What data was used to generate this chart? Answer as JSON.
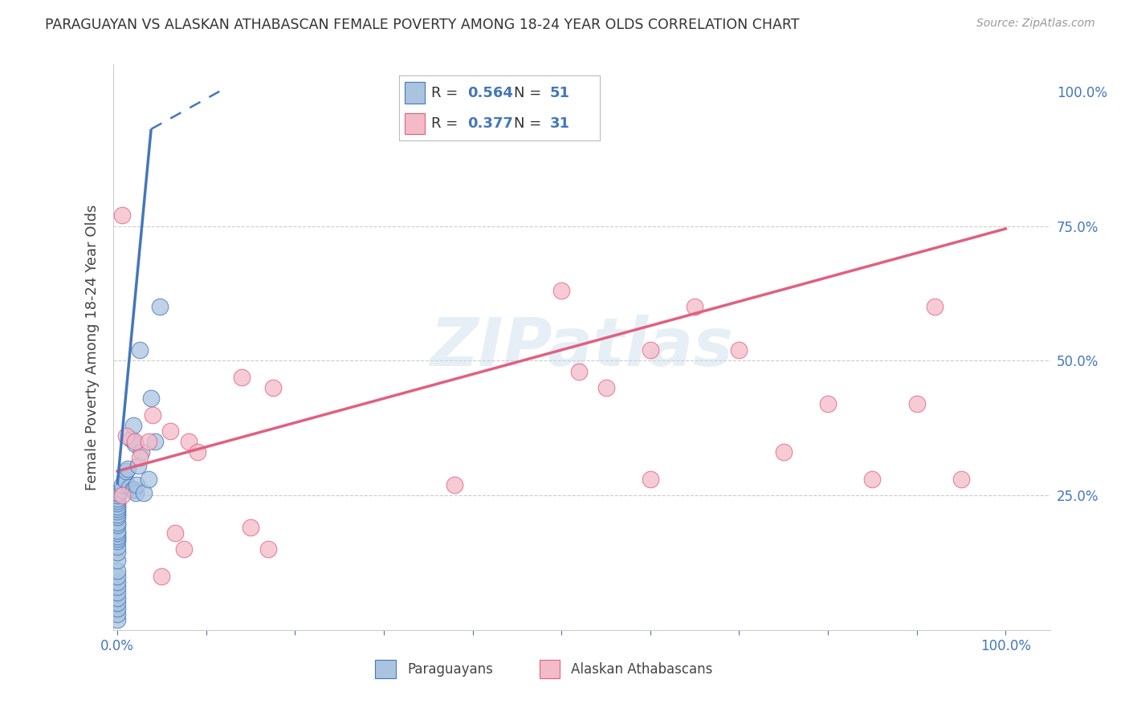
{
  "title": "PARAGUAYAN VS ALASKAN ATHABASCAN FEMALE POVERTY AMONG 18-24 YEAR OLDS CORRELATION CHART",
  "source": "Source: ZipAtlas.com",
  "ylabel": "Female Poverty Among 18-24 Year Olds",
  "blue_R": 0.564,
  "blue_N": 51,
  "pink_R": 0.377,
  "pink_N": 31,
  "blue_label": "Paraguayans",
  "pink_label": "Alaskan Athabascans",
  "blue_color": "#aac4e0",
  "pink_color": "#f5bac8",
  "blue_line_color": "#4477bb",
  "pink_line_color": "#e06080",
  "blue_text_color": "#4477bb",
  "watermark_text": "ZIPatlas",
  "blue_points_x": [
    0.0,
    0.0,
    0.0,
    0.0,
    0.0,
    0.0,
    0.0,
    0.0,
    0.0,
    0.0,
    0.0,
    0.0,
    0.0,
    0.0,
    0.0,
    0.0,
    0.0,
    0.0,
    0.0,
    0.0,
    0.0,
    0.0,
    0.0,
    0.0,
    0.0,
    0.0,
    0.0,
    0.0,
    0.0,
    0.0,
    0.005,
    0.005,
    0.008,
    0.01,
    0.012,
    0.013,
    0.015,
    0.017,
    0.018,
    0.019,
    0.02,
    0.021,
    0.022,
    0.023,
    0.025,
    0.027,
    0.03,
    0.035,
    0.038,
    0.042,
    0.048
  ],
  "blue_points_y": [
    0.02,
    0.03,
    0.04,
    0.05,
    0.06,
    0.07,
    0.08,
    0.09,
    0.1,
    0.11,
    0.13,
    0.145,
    0.155,
    0.165,
    0.17,
    0.175,
    0.18,
    0.185,
    0.195,
    0.2,
    0.21,
    0.215,
    0.22,
    0.225,
    0.23,
    0.235,
    0.24,
    0.245,
    0.25,
    0.255,
    0.26,
    0.27,
    0.28,
    0.295,
    0.3,
    0.265,
    0.355,
    0.26,
    0.38,
    0.26,
    0.345,
    0.255,
    0.27,
    0.305,
    0.52,
    0.33,
    0.255,
    0.28,
    0.43,
    0.35,
    0.6
  ],
  "pink_points_x": [
    0.005,
    0.01,
    0.02,
    0.025,
    0.035,
    0.04,
    0.05,
    0.06,
    0.065,
    0.075,
    0.08,
    0.09,
    0.14,
    0.15,
    0.17,
    0.175,
    0.38,
    0.5,
    0.52,
    0.55,
    0.6,
    0.6,
    0.65,
    0.7,
    0.75,
    0.8,
    0.85,
    0.9,
    0.92,
    0.95,
    0.005
  ],
  "pink_points_y": [
    0.77,
    0.36,
    0.35,
    0.32,
    0.35,
    0.4,
    0.1,
    0.37,
    0.18,
    0.15,
    0.35,
    0.33,
    0.47,
    0.19,
    0.15,
    0.45,
    0.27,
    0.63,
    0.48,
    0.45,
    0.28,
    0.52,
    0.6,
    0.52,
    0.33,
    0.42,
    0.28,
    0.42,
    0.6,
    0.28,
    0.25
  ],
  "blue_line_x0": 0.0,
  "blue_line_y0": 0.27,
  "blue_line_x1_solid": 0.038,
  "blue_line_y1_solid": 0.93,
  "blue_line_x1_dashed": 0.115,
  "blue_line_y1_dashed": 1.0,
  "pink_line_x0": 0.0,
  "pink_line_y0": 0.295,
  "pink_line_x1": 1.0,
  "pink_line_y1": 0.745,
  "ylim_min": 0.0,
  "ylim_max": 1.05,
  "xlim_min": -0.005,
  "xlim_max": 1.05,
  "background_color": "#ffffff",
  "grid_color": "#cccccc"
}
